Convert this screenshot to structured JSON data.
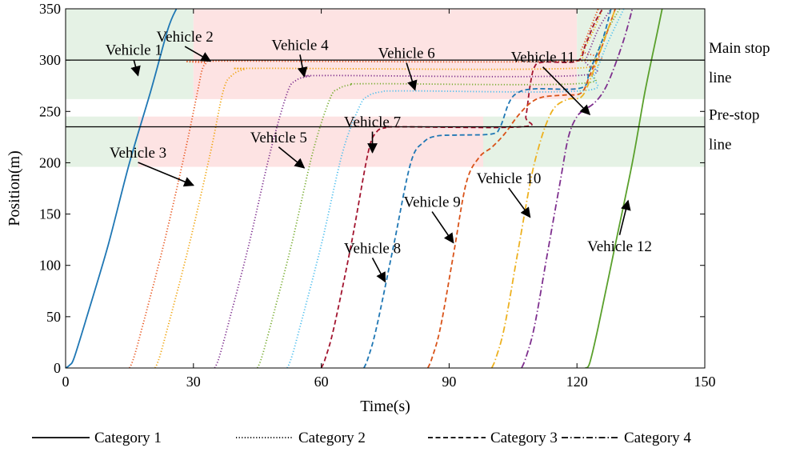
{
  "chart_data": {
    "type": "line",
    "xlabel": "Time(s)",
    "ylabel": "Position(m)",
    "xlim": [
      0,
      150
    ],
    "ylim": [
      0,
      350
    ],
    "xticks": [
      0,
      30,
      60,
      90,
      120,
      150
    ],
    "yticks": [
      0,
      50,
      100,
      150,
      200,
      250,
      300,
      350
    ],
    "grid": false,
    "legend_position": "bottom",
    "reference_lines": [
      {
        "y": 300,
        "label_lines": [
          "Main stop",
          "line"
        ]
      },
      {
        "y": 235,
        "label_lines": [
          "Pre-stop",
          "line"
        ]
      }
    ],
    "signal_bands": [
      {
        "y": [
          262,
          350
        ],
        "x": [
          0,
          30
        ],
        "color": "#e5f2e5"
      },
      {
        "y": [
          262,
          350
        ],
        "x": [
          30,
          120
        ],
        "color": "#fde3e3"
      },
      {
        "y": [
          262,
          350
        ],
        "x": [
          120,
          150
        ],
        "color": "#e5f2e5"
      },
      {
        "y": [
          196,
          245
        ],
        "x": [
          0,
          17
        ],
        "color": "#e5f2e5"
      },
      {
        "y": [
          196,
          245
        ],
        "x": [
          17,
          98
        ],
        "color": "#fde3e3"
      },
      {
        "y": [
          196,
          245
        ],
        "x": [
          98,
          150
        ],
        "color": "#e5f2e5"
      }
    ],
    "categories_legend": [
      {
        "name": "Category 1",
        "dash": "solid"
      },
      {
        "name": "Category 2",
        "dash": "dotted"
      },
      {
        "name": "Category 3",
        "dash": "dashed"
      },
      {
        "name": "Category 4",
        "dash": "dashdot"
      }
    ],
    "series": [
      {
        "name": "Vehicle 1",
        "category": 1,
        "color": "#1f77b4",
        "points": [
          [
            0,
            0
          ],
          [
            1,
            3
          ],
          [
            2,
            10
          ],
          [
            5,
            50
          ],
          [
            10,
            120
          ],
          [
            15,
            200
          ],
          [
            20,
            270
          ],
          [
            24,
            330
          ],
          [
            26,
            350
          ]
        ]
      },
      {
        "name": "Vehicle 2",
        "category": 2,
        "color": "#e8541c",
        "points": [
          [
            15,
            0
          ],
          [
            16,
            10
          ],
          [
            18,
            40
          ],
          [
            23,
            120
          ],
          [
            28,
            210
          ],
          [
            31,
            270
          ],
          [
            32,
            290
          ],
          [
            33,
            297
          ],
          [
            35,
            299
          ],
          [
            119,
            299
          ],
          [
            121,
            310
          ],
          [
            123,
            330
          ],
          [
            125,
            350
          ]
        ]
      },
      {
        "name": "Vehicle 3",
        "category": 2,
        "color": "#f0a30a",
        "points": [
          [
            21,
            0
          ],
          [
            22,
            10
          ],
          [
            24,
            40
          ],
          [
            29,
            120
          ],
          [
            34,
            210
          ],
          [
            37,
            270
          ],
          [
            39,
            285
          ],
          [
            42,
            291
          ],
          [
            46,
            292
          ],
          [
            119,
            292
          ],
          [
            121,
            305
          ],
          [
            124,
            330
          ],
          [
            126,
            350
          ]
        ]
      },
      {
        "name": "Vehicle 4",
        "category": 2,
        "color": "#7e2f8e",
        "points": [
          [
            35,
            0
          ],
          [
            36,
            10
          ],
          [
            38,
            40
          ],
          [
            43,
            120
          ],
          [
            48,
            210
          ],
          [
            52,
            268
          ],
          [
            54,
            280
          ],
          [
            57,
            284
          ],
          [
            62,
            285
          ],
          [
            120,
            285
          ],
          [
            122,
            300
          ],
          [
            125,
            330
          ],
          [
            128,
            350
          ]
        ]
      },
      {
        "name": "Vehicle 5",
        "category": 2,
        "color": "#77ac30",
        "points": [
          [
            45,
            0
          ],
          [
            46,
            10
          ],
          [
            48,
            40
          ],
          [
            53,
            120
          ],
          [
            58,
            210
          ],
          [
            62,
            262
          ],
          [
            64,
            272
          ],
          [
            67,
            276
          ],
          [
            72,
            277
          ],
          [
            120,
            277
          ],
          [
            123,
            290
          ],
          [
            126,
            320
          ],
          [
            130,
            350
          ]
        ]
      },
      {
        "name": "Vehicle 6",
        "category": 2,
        "color": "#4dbeee",
        "points": [
          [
            52,
            0
          ],
          [
            53,
            10
          ],
          [
            55,
            40
          ],
          [
            60,
            120
          ],
          [
            65,
            210
          ],
          [
            69,
            255
          ],
          [
            71,
            265
          ],
          [
            74,
            269
          ],
          [
            80,
            270
          ],
          [
            121,
            270
          ],
          [
            124,
            285
          ],
          [
            127,
            315
          ],
          [
            131,
            350
          ]
        ]
      },
      {
        "name": "Vehicle 7",
        "category": 3,
        "color": "#a2142f",
        "points": [
          [
            60,
            0
          ],
          [
            61,
            10
          ],
          [
            63,
            40
          ],
          [
            67,
            120
          ],
          [
            71,
            210
          ],
          [
            73,
            230
          ],
          [
            75,
            234
          ],
          [
            78,
            235
          ],
          [
            107,
            235
          ],
          [
            108,
            245
          ],
          [
            109,
            275
          ],
          [
            110,
            293
          ],
          [
            112,
            298
          ],
          [
            120,
            299
          ],
          [
            122,
            315
          ],
          [
            124,
            335
          ],
          [
            126,
            350
          ]
        ]
      },
      {
        "name": "Vehicle 8",
        "category": 3,
        "color": "#1f77b4",
        "points": [
          [
            70,
            0
          ],
          [
            71,
            10
          ],
          [
            73,
            40
          ],
          [
            77,
            120
          ],
          [
            81,
            200
          ],
          [
            84,
            220
          ],
          [
            87,
            226
          ],
          [
            92,
            227
          ],
          [
            100,
            228
          ],
          [
            102,
            235
          ],
          [
            104,
            258
          ],
          [
            106,
            268
          ],
          [
            110,
            272
          ],
          [
            121,
            273
          ],
          [
            123,
            290
          ],
          [
            126,
            320
          ],
          [
            128,
            350
          ]
        ]
      },
      {
        "name": "Vehicle 9",
        "category": 3,
        "color": "#d95319",
        "points": [
          [
            85,
            0
          ],
          [
            86,
            10
          ],
          [
            88,
            40
          ],
          [
            91,
            110
          ],
          [
            94,
            180
          ],
          [
            97,
            205
          ],
          [
            100,
            215
          ],
          [
            103,
            228
          ],
          [
            106,
            245
          ],
          [
            109,
            258
          ],
          [
            112,
            264
          ],
          [
            117,
            266
          ],
          [
            121,
            268
          ],
          [
            123,
            285
          ],
          [
            126,
            315
          ],
          [
            129,
            350
          ]
        ]
      },
      {
        "name": "Vehicle 10",
        "category": 4,
        "color": "#edb120",
        "points": [
          [
            100,
            0
          ],
          [
            101,
            10
          ],
          [
            103,
            40
          ],
          [
            106,
            110
          ],
          [
            109,
            180
          ],
          [
            111,
            215
          ],
          [
            113,
            240
          ],
          [
            115,
            255
          ],
          [
            118,
            262
          ],
          [
            121,
            264
          ],
          [
            123,
            280
          ],
          [
            126,
            315
          ],
          [
            129,
            350
          ]
        ]
      },
      {
        "name": "Vehicle 11",
        "category": 4,
        "color": "#7e2f8e",
        "points": [
          [
            107,
            0
          ],
          [
            108,
            10
          ],
          [
            110,
            40
          ],
          [
            113,
            110
          ],
          [
            116,
            180
          ],
          [
            118,
            225
          ],
          [
            120,
            245
          ],
          [
            122,
            252
          ],
          [
            124,
            258
          ],
          [
            126,
            268
          ],
          [
            128,
            285
          ],
          [
            131,
            320
          ],
          [
            133,
            350
          ]
        ]
      },
      {
        "name": "Vehicle 12",
        "category": 1,
        "color": "#5aa02c",
        "points": [
          [
            122,
            0
          ],
          [
            123,
            5
          ],
          [
            125,
            40
          ],
          [
            129,
            120
          ],
          [
            133,
            200
          ],
          [
            136,
            270
          ],
          [
            139,
            330
          ],
          [
            140,
            350
          ]
        ]
      }
    ],
    "annotations": [
      {
        "text": "Vehicle 1",
        "text_at": [
          16,
          305
        ],
        "arrow_to": [
          17,
          285
        ]
      },
      {
        "text": "Vehicle 2",
        "text_at": [
          28,
          318
        ],
        "arrow_to": [
          34,
          299
        ]
      },
      {
        "text": "Vehicle 3",
        "text_at": [
          17,
          205
        ],
        "arrow_to": [
          30,
          178
        ]
      },
      {
        "text": "Vehicle 4",
        "text_at": [
          55,
          310
        ],
        "arrow_to": [
          56,
          284
        ]
      },
      {
        "text": "Vehicle 5",
        "text_at": [
          50,
          220
        ],
        "arrow_to": [
          56,
          195
        ]
      },
      {
        "text": "Vehicle 6",
        "text_at": [
          80,
          302
        ],
        "arrow_to": [
          82,
          271
        ]
      },
      {
        "text": "Vehicle 7",
        "text_at": [
          72,
          235
        ],
        "arrow_to": [
          72,
          210
        ]
      },
      {
        "text": "Vehicle 8",
        "text_at": [
          72,
          112
        ],
        "arrow_to": [
          75,
          84
        ]
      },
      {
        "text": "Vehicle 9",
        "text_at": [
          86,
          157
        ],
        "arrow_to": [
          91,
          122
        ]
      },
      {
        "text": "Vehicle 10",
        "text_at": [
          104,
          180
        ],
        "arrow_to": [
          109,
          147
        ]
      },
      {
        "text": "Vehicle 11",
        "text_at": [
          112,
          298
        ],
        "arrow_to": [
          123,
          247
        ]
      },
      {
        "text": "Vehicle 12",
        "text_at": [
          130,
          114
        ],
        "arrow_to": [
          132,
          163
        ]
      }
    ]
  }
}
